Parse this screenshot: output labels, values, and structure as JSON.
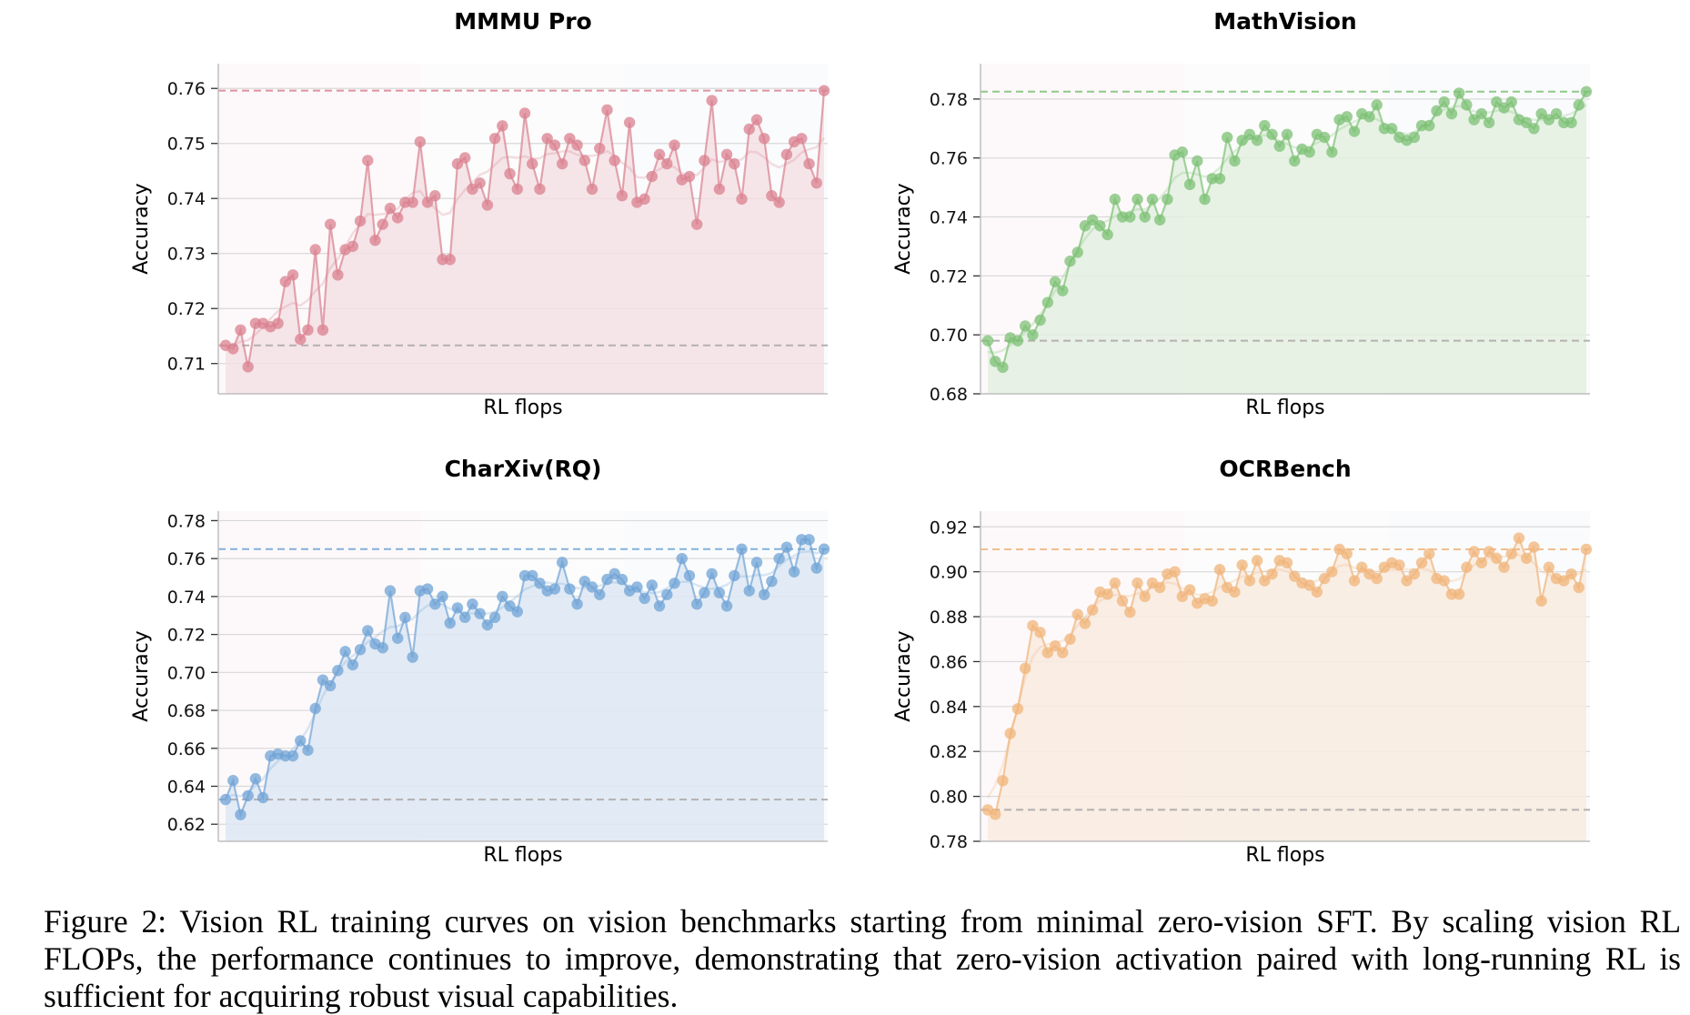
{
  "figure": {
    "caption": "Figure 2: Vision RL training curves on vision benchmarks starting from minimal zero-vision SFT. By scaling vision RL FLOPs, the performance continues to improve, demonstrating that zero-vision activation paired with long-running RL is sufficient for acquiring robust visual capabilities."
  },
  "chart_data": [
    {
      "type": "line",
      "title": "MMMU Pro",
      "xlabel": "RL flops",
      "ylabel": "Accuracy",
      "ylim": [
        0.7045,
        0.7645
      ],
      "yticks": [
        0.71,
        0.72,
        0.73,
        0.74,
        0.75,
        0.76
      ],
      "ytick_labels": [
        "0.71",
        "0.72",
        "0.73",
        "0.74",
        "0.75",
        "0.76"
      ],
      "grid": true,
      "color": "#d9808f",
      "fill_color": "#f3e1e4",
      "baseline": 0.7133,
      "best": 0.7596,
      "values": [
        0.7133,
        0.7127,
        0.7161,
        0.7094,
        0.7173,
        0.7173,
        0.7167,
        0.7173,
        0.7249,
        0.7261,
        0.7144,
        0.7161,
        0.7307,
        0.7161,
        0.7353,
        0.7261,
        0.7307,
        0.7313,
        0.7359,
        0.7469,
        0.7324,
        0.7353,
        0.7382,
        0.7365,
        0.7393,
        0.7393,
        0.7503,
        0.7393,
        0.7405,
        0.7289,
        0.7289,
        0.7463,
        0.7474,
        0.7417,
        0.7428,
        0.7388,
        0.7509,
        0.7532,
        0.7445,
        0.7417,
        0.7555,
        0.7463,
        0.7417,
        0.7509,
        0.7497,
        0.7463,
        0.7509,
        0.7497,
        0.7469,
        0.7417,
        0.7491,
        0.7561,
        0.7469,
        0.7405,
        0.7538,
        0.7393,
        0.7399,
        0.744,
        0.748,
        0.7463,
        0.7497,
        0.7434,
        0.744,
        0.7353,
        0.7469,
        0.7578,
        0.7417,
        0.748,
        0.7463,
        0.7399,
        0.7526,
        0.7543,
        0.7509,
        0.7405,
        0.7393,
        0.748,
        0.7503,
        0.7509,
        0.7463,
        0.7428,
        0.7596
      ]
    },
    {
      "type": "line",
      "title": "MathVision",
      "xlabel": "RL flops",
      "ylabel": "Accuracy",
      "ylim": [
        0.68,
        0.792
      ],
      "yticks": [
        0.68,
        0.7,
        0.72,
        0.74,
        0.76,
        0.78
      ],
      "ytick_labels": [
        "0.68",
        "0.70",
        "0.72",
        "0.74",
        "0.76",
        "0.78"
      ],
      "grid": true,
      "color": "#7cc074",
      "fill_color": "#e3f0e1",
      "baseline": 0.698,
      "best": 0.7825,
      "values": [
        0.698,
        0.691,
        0.689,
        0.699,
        0.698,
        0.703,
        0.7,
        0.705,
        0.711,
        0.718,
        0.715,
        0.725,
        0.728,
        0.737,
        0.739,
        0.737,
        0.734,
        0.746,
        0.74,
        0.74,
        0.746,
        0.74,
        0.746,
        0.739,
        0.746,
        0.761,
        0.762,
        0.751,
        0.759,
        0.746,
        0.753,
        0.753,
        0.767,
        0.759,
        0.766,
        0.768,
        0.766,
        0.771,
        0.768,
        0.764,
        0.768,
        0.759,
        0.763,
        0.762,
        0.768,
        0.767,
        0.762,
        0.773,
        0.774,
        0.769,
        0.775,
        0.774,
        0.778,
        0.77,
        0.77,
        0.767,
        0.766,
        0.767,
        0.771,
        0.771,
        0.776,
        0.779,
        0.775,
        0.782,
        0.778,
        0.773,
        0.775,
        0.772,
        0.779,
        0.777,
        0.779,
        0.773,
        0.772,
        0.77,
        0.775,
        0.773,
        0.775,
        0.772,
        0.772,
        0.778,
        0.7825
      ]
    },
    {
      "type": "line",
      "title": "CharXiv(RQ)",
      "xlabel": "RL flops",
      "ylabel": "Accuracy",
      "ylim": [
        0.611,
        0.785
      ],
      "yticks": [
        0.62,
        0.64,
        0.66,
        0.68,
        0.7,
        0.72,
        0.74,
        0.76,
        0.78
      ],
      "ytick_labels": [
        "0.62",
        "0.64",
        "0.66",
        "0.68",
        "0.70",
        "0.72",
        "0.74",
        "0.76",
        "0.78"
      ],
      "grid": true,
      "color": "#6fa3d6",
      "fill_color": "#dde8f3",
      "baseline": 0.633,
      "best": 0.765,
      "values": [
        0.633,
        0.643,
        0.625,
        0.635,
        0.644,
        0.634,
        0.656,
        0.657,
        0.656,
        0.656,
        0.664,
        0.659,
        0.681,
        0.696,
        0.693,
        0.701,
        0.711,
        0.704,
        0.712,
        0.722,
        0.715,
        0.713,
        0.743,
        0.718,
        0.729,
        0.708,
        0.743,
        0.744,
        0.736,
        0.74,
        0.726,
        0.734,
        0.729,
        0.736,
        0.731,
        0.725,
        0.729,
        0.74,
        0.735,
        0.732,
        0.751,
        0.751,
        0.747,
        0.743,
        0.744,
        0.758,
        0.744,
        0.736,
        0.748,
        0.745,
        0.741,
        0.749,
        0.752,
        0.749,
        0.743,
        0.745,
        0.739,
        0.746,
        0.735,
        0.741,
        0.747,
        0.76,
        0.751,
        0.736,
        0.742,
        0.752,
        0.742,
        0.735,
        0.751,
        0.765,
        0.743,
        0.758,
        0.741,
        0.748,
        0.76,
        0.766,
        0.753,
        0.77,
        0.77,
        0.755,
        0.765
      ]
    },
    {
      "type": "line",
      "title": "OCRBench",
      "xlabel": "RL flops",
      "ylabel": "Accuracy",
      "ylim": [
        0.78,
        0.927
      ],
      "yticks": [
        0.78,
        0.8,
        0.82,
        0.84,
        0.86,
        0.88,
        0.9,
        0.92
      ],
      "ytick_labels": [
        "0.78",
        "0.80",
        "0.82",
        "0.84",
        "0.86",
        "0.88",
        "0.90",
        "0.92"
      ],
      "grid": true,
      "color": "#f0b47a",
      "fill_color": "#f8ebdf",
      "baseline": 0.794,
      "best": 0.91,
      "values": [
        0.794,
        0.792,
        0.807,
        0.828,
        0.839,
        0.857,
        0.876,
        0.873,
        0.864,
        0.867,
        0.864,
        0.87,
        0.881,
        0.877,
        0.883,
        0.891,
        0.89,
        0.895,
        0.887,
        0.882,
        0.895,
        0.889,
        0.895,
        0.893,
        0.899,
        0.9,
        0.889,
        0.892,
        0.886,
        0.888,
        0.887,
        0.901,
        0.893,
        0.891,
        0.903,
        0.896,
        0.905,
        0.896,
        0.899,
        0.905,
        0.904,
        0.898,
        0.895,
        0.894,
        0.891,
        0.897,
        0.9,
        0.91,
        0.908,
        0.896,
        0.902,
        0.899,
        0.897,
        0.902,
        0.904,
        0.903,
        0.896,
        0.899,
        0.904,
        0.908,
        0.897,
        0.896,
        0.89,
        0.89,
        0.902,
        0.909,
        0.904,
        0.909,
        0.906,
        0.902,
        0.908,
        0.915,
        0.906,
        0.911,
        0.887,
        0.902,
        0.897,
        0.896,
        0.899,
        0.893,
        0.91
      ]
    }
  ]
}
